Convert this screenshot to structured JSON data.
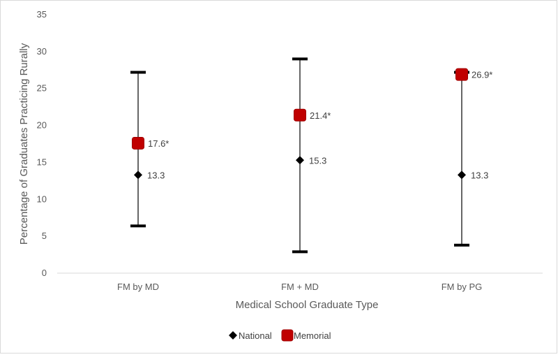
{
  "chart_data": {
    "type": "scatter",
    "title": "",
    "xlabel": "Medical School Graduate Type",
    "ylabel": "Percentage of Graduates Practicing Rurally",
    "ylim": [
      0,
      35
    ],
    "yticks": [
      0,
      5,
      10,
      15,
      20,
      25,
      30,
      35
    ],
    "categories": [
      "FM by MD",
      "FM + MD",
      "FM by PG"
    ],
    "error_ranges": [
      {
        "low": 6.4,
        "high": 27.2
      },
      {
        "low": 2.9,
        "high": 29.0
      },
      {
        "low": 3.8,
        "high": 27.2
      }
    ],
    "series": [
      {
        "name": "National",
        "values": [
          13.3,
          15.3,
          13.3
        ],
        "labels": [
          "13.3",
          "15.3",
          "13.3"
        ],
        "marker": "diamond",
        "color": "#000000"
      },
      {
        "name": "Memorial",
        "values": [
          17.6,
          21.4,
          26.9
        ],
        "labels": [
          "17.6*",
          "21.4*",
          "26.9*"
        ],
        "marker": "square",
        "color": "#c00000"
      }
    ],
    "grid": false,
    "legend": "bottom-center"
  }
}
